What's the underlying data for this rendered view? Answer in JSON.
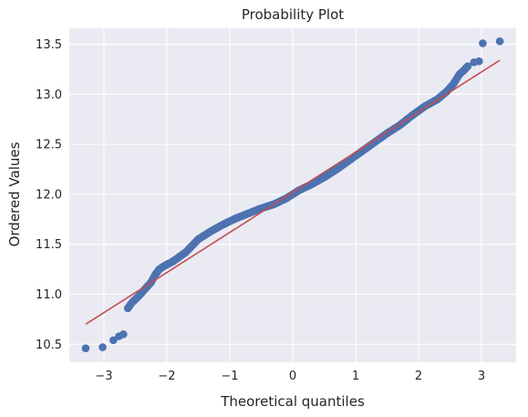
{
  "chart_data": {
    "type": "scatter",
    "title": "Probability Plot",
    "xlabel": "Theoretical quantiles",
    "ylabel": "Ordered Values",
    "xlim": [
      -3.55,
      3.55
    ],
    "ylim": [
      10.32,
      13.66
    ],
    "xticks": [
      -3,
      -2,
      -1,
      0,
      1,
      2,
      3
    ],
    "xtick_labels": [
      "−3",
      "−2",
      "−1",
      "0",
      "1",
      "2",
      "3"
    ],
    "yticks": [
      10.5,
      11.0,
      11.5,
      12.0,
      12.5,
      13.0,
      13.5
    ],
    "ytick_labels": [
      "10.5",
      "11.0",
      "11.5",
      "12.0",
      "12.5",
      "13.0",
      "13.5"
    ],
    "grid": true,
    "background_color": "#eaeaf2",
    "grid_color": "#ffffff",
    "point_color": "#4c72b0",
    "line_color": "#c44e52",
    "fit_line": {
      "x": [
        -3.29,
        3.29
      ],
      "y": [
        10.7,
        13.34
      ]
    },
    "outlier_points": {
      "x": [
        -3.29,
        -3.02,
        -2.85,
        -2.76,
        -2.69
      ],
      "y": [
        10.46,
        10.47,
        10.54,
        10.58,
        10.6
      ]
    },
    "sample_curve": {
      "x": [
        -2.62,
        -2.55,
        -2.45,
        -2.35,
        -2.25,
        -2.18,
        -2.12,
        -2.05,
        -1.9,
        -1.7,
        -1.5,
        -1.3,
        -1.1,
        -0.9,
        -0.7,
        -0.5,
        -0.3,
        -0.1,
        0.1,
        0.3,
        0.5,
        0.7,
        0.9,
        1.1,
        1.3,
        1.5,
        1.7,
        1.9,
        2.1,
        2.3,
        2.45,
        2.55,
        2.65,
        2.72,
        2.78
      ],
      "y": [
        10.86,
        10.92,
        10.98,
        11.05,
        11.12,
        11.2,
        11.25,
        11.28,
        11.33,
        11.42,
        11.55,
        11.63,
        11.7,
        11.76,
        11.81,
        11.86,
        11.9,
        11.96,
        12.04,
        12.1,
        12.17,
        12.25,
        12.34,
        12.43,
        12.52,
        12.61,
        12.69,
        12.79,
        12.88,
        12.95,
        13.03,
        13.1,
        13.2,
        13.24,
        13.28
      ]
    },
    "upper_tail_points": {
      "x": [
        2.88,
        2.96,
        3.02,
        3.29
      ],
      "y": [
        13.32,
        13.33,
        13.51,
        13.53
      ]
    }
  }
}
